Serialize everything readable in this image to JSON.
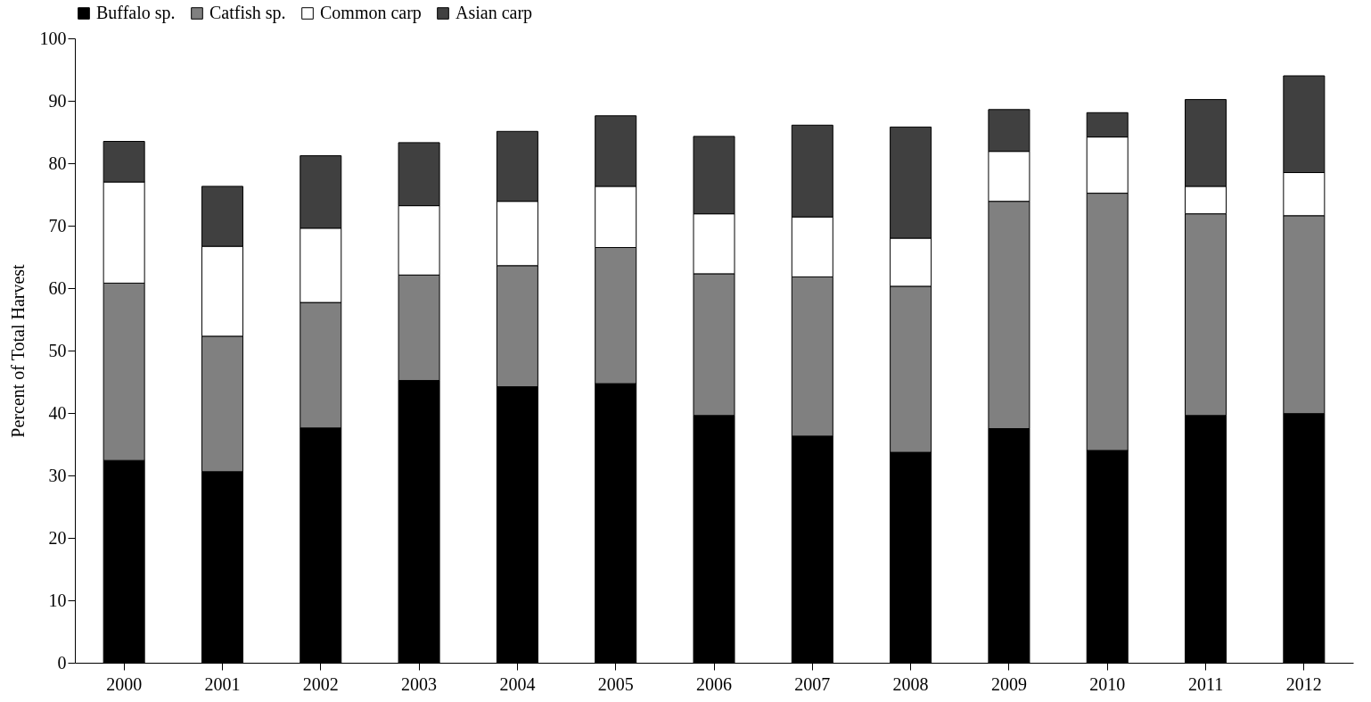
{
  "chart_data": {
    "type": "bar",
    "stacked": true,
    "ylabel": "Percent of Total Harvest",
    "categories": [
      "2000",
      "2001",
      "2002",
      "2003",
      "2004",
      "2005",
      "2006",
      "2007",
      "2008",
      "2009",
      "2010",
      "2011",
      "2012"
    ],
    "series": [
      {
        "name": "Buffalo sp.",
        "color": "#000000",
        "values": [
          32.4,
          30.6,
          37.6,
          45.2,
          44.2,
          44.7,
          39.6,
          36.3,
          33.7,
          37.5,
          34.0,
          39.6,
          39.9
        ]
      },
      {
        "name": "Catfish sp.",
        "color": "#808080",
        "values": [
          28.4,
          21.7,
          20.1,
          16.9,
          19.4,
          21.8,
          22.7,
          25.5,
          26.6,
          36.4,
          41.2,
          32.3,
          31.7
        ]
      },
      {
        "name": "Common carp",
        "color": "#ffffff",
        "values": [
          16.2,
          14.4,
          11.9,
          11.1,
          10.3,
          9.8,
          9.6,
          9.6,
          7.7,
          8.0,
          9.0,
          4.4,
          6.9
        ]
      },
      {
        "name": "Asian carp",
        "color": "#404040",
        "values": [
          6.5,
          9.6,
          11.6,
          10.1,
          11.2,
          11.3,
          12.4,
          14.7,
          17.8,
          6.7,
          3.9,
          13.9,
          15.5
        ]
      }
    ],
    "ylim": [
      0,
      100
    ],
    "yticks": [
      0,
      10,
      20,
      30,
      40,
      50,
      60,
      70,
      80,
      90,
      100
    ],
    "grid": false,
    "legend": "top"
  }
}
